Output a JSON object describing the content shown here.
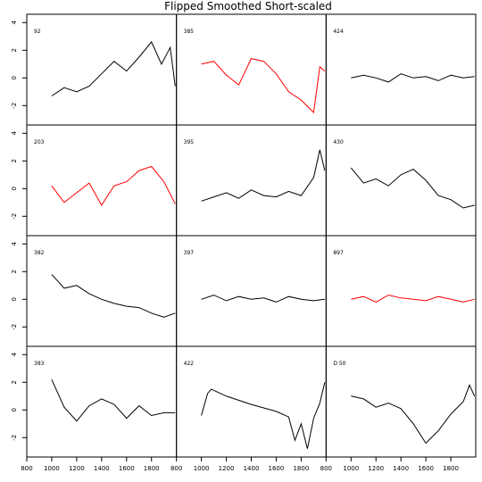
{
  "chart_data": {
    "type": "line",
    "title": "Flipped Smoothed Short-scaled",
    "xlim": [
      800,
      2000
    ],
    "ylim": [
      -3.4,
      4.6
    ],
    "x_ticks": [
      800,
      1000,
      1200,
      1400,
      1600,
      1800
    ],
    "y_ticks": [
      -2,
      0,
      2,
      4
    ],
    "colors": {
      "black": "#000000",
      "red": "#ff0000"
    },
    "layout": "4 rows x 3 columns",
    "panels": [
      {
        "label": "92",
        "color": "#000000",
        "x": [
          1000,
          1100,
          1200,
          1300,
          1400,
          1500,
          1600,
          1700,
          1800,
          1880,
          1950,
          1990
        ],
        "y": [
          -1.3,
          -0.7,
          -1.0,
          -0.6,
          0.3,
          1.2,
          0.5,
          1.5,
          2.6,
          1.0,
          2.2,
          -0.6
        ]
      },
      {
        "label": "385",
        "color": "#ff0000",
        "x": [
          1000,
          1100,
          1200,
          1300,
          1400,
          1500,
          1600,
          1700,
          1800,
          1900,
          1950,
          1990
        ],
        "y": [
          1.0,
          1.2,
          0.2,
          -0.5,
          1.4,
          1.2,
          0.3,
          -1.0,
          -1.6,
          -2.5,
          0.8,
          0.5
        ]
      },
      {
        "label": "424",
        "color": "#000000",
        "x": [
          1000,
          1100,
          1200,
          1300,
          1400,
          1500,
          1600,
          1700,
          1800,
          1900,
          1990
        ],
        "y": [
          0,
          0.2,
          0,
          -0.3,
          0.3,
          0,
          0.1,
          -0.2,
          0.2,
          0,
          0.1
        ]
      },
      {
        "label": "203",
        "color": "#ff0000",
        "x": [
          1000,
          1100,
          1200,
          1300,
          1400,
          1500,
          1600,
          1700,
          1800,
          1900,
          1990
        ],
        "y": [
          0.2,
          -1.0,
          -0.3,
          0.4,
          -1.2,
          0.2,
          0.5,
          1.3,
          1.6,
          0.5,
          -1.1
        ]
      },
      {
        "label": "395",
        "color": "#000000",
        "x": [
          1000,
          1100,
          1200,
          1300,
          1400,
          1500,
          1600,
          1700,
          1800,
          1900,
          1950,
          1990
        ],
        "y": [
          -0.9,
          -0.6,
          -0.3,
          -0.7,
          -0.1,
          -0.5,
          -0.6,
          -0.2,
          -0.5,
          0.8,
          2.8,
          1.3
        ]
      },
      {
        "label": "430",
        "color": "#000000",
        "x": [
          1000,
          1100,
          1200,
          1300,
          1400,
          1500,
          1600,
          1700,
          1800,
          1900,
          1990
        ],
        "y": [
          1.5,
          0.4,
          0.7,
          0.2,
          1.0,
          1.4,
          0.6,
          -0.5,
          -0.8,
          -1.4,
          -1.2
        ]
      },
      {
        "label": "382",
        "color": "#000000",
        "x": [
          1000,
          1100,
          1200,
          1300,
          1400,
          1500,
          1600,
          1700,
          1800,
          1900,
          1990
        ],
        "y": [
          1.8,
          0.8,
          1.0,
          0.4,
          0,
          -0.3,
          -0.5,
          -0.6,
          -1.0,
          -1.3,
          -1.0
        ]
      },
      {
        "label": "397",
        "color": "#000000",
        "x": [
          1000,
          1100,
          1200,
          1300,
          1400,
          1500,
          1600,
          1700,
          1800,
          1900,
          1990
        ],
        "y": [
          0,
          0.3,
          -0.1,
          0.2,
          0,
          0.1,
          -0.2,
          0.2,
          0,
          -0.1,
          0
        ]
      },
      {
        "label": "897",
        "color": "#ff0000",
        "x": [
          1000,
          1100,
          1200,
          1300,
          1400,
          1500,
          1600,
          1700,
          1800,
          1900,
          1990
        ],
        "y": [
          0,
          0.2,
          -0.2,
          0.3,
          0.1,
          0,
          -0.1,
          0.2,
          0,
          -0.2,
          0
        ]
      },
      {
        "label": "383",
        "color": "#000000",
        "x": [
          1000,
          1100,
          1200,
          1300,
          1400,
          1500,
          1600,
          1700,
          1800,
          1900,
          1990
        ],
        "y": [
          2.2,
          0.2,
          -0.8,
          0.3,
          0.8,
          0.4,
          -0.6,
          0.3,
          -0.4,
          -0.2,
          -0.2
        ]
      },
      {
        "label": "422",
        "color": "#000000",
        "x": [
          1000,
          1050,
          1080,
          1200,
          1400,
          1600,
          1700,
          1750,
          1800,
          1850,
          1900,
          1950,
          1990
        ],
        "y": [
          -0.4,
          1.2,
          1.5,
          1.0,
          0.4,
          -0.1,
          -0.5,
          -2.2,
          -1.0,
          -2.8,
          -0.6,
          0.5,
          2.0
        ]
      },
      {
        "label": "D 50",
        "color": "#000000",
        "x": [
          1000,
          1100,
          1200,
          1300,
          1400,
          1500,
          1600,
          1700,
          1800,
          1900,
          1950,
          1990
        ],
        "y": [
          1.0,
          0.8,
          0.2,
          0.5,
          0.1,
          -1.0,
          -2.4,
          -1.5,
          -0.3,
          0.6,
          1.8,
          1.0
        ]
      }
    ]
  }
}
